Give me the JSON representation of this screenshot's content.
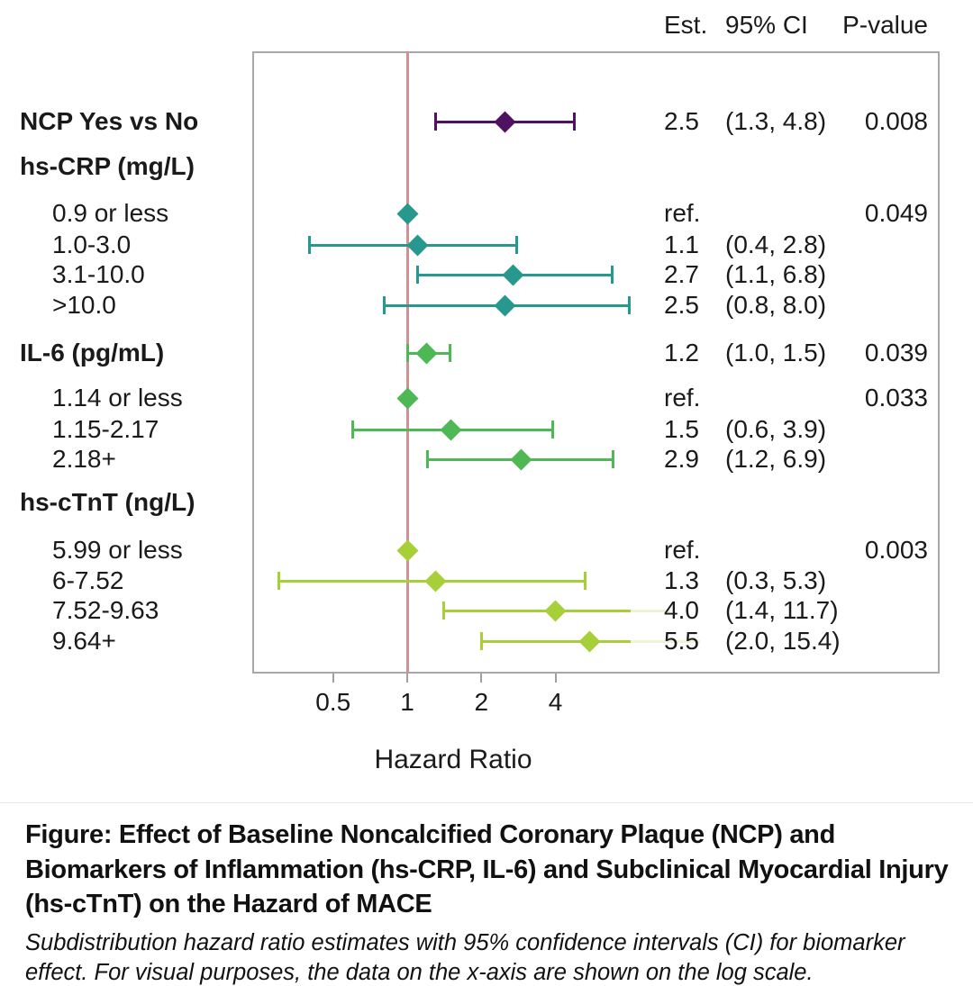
{
  "stats_header": {
    "est": "Est.",
    "ci": "95% CI",
    "pvalue": "P-value"
  },
  "axis": {
    "title": "Hazard Ratio",
    "tick_values": [
      0.5,
      1,
      2,
      4
    ],
    "tick_labels": [
      "0.5",
      "1",
      "2",
      "4"
    ],
    "scale": "log",
    "reference_value": 1
  },
  "colors": {
    "ncp": "#4e1260",
    "hscrp": "#27988d",
    "il6": "#4eb854",
    "hsctnt": "#a6cf39",
    "refline": "#d49090",
    "panel_border": "#a8a8a8",
    "tick": "#a0a0a0"
  },
  "chart_data": {
    "type": "scatter",
    "subtype": "forest-plot",
    "xlabel": "Hazard Ratio",
    "x_ticks": [
      0.5,
      1,
      2,
      4
    ],
    "x_scale": "log2",
    "legend_position": "none",
    "grid": false,
    "rows": [
      {
        "label": "NCP Yes vs No",
        "bold": true,
        "indent": false,
        "hr": 2.5,
        "lo": 1.3,
        "hi": 4.8,
        "est": "2.5",
        "ci": "(1.3, 4.8)",
        "p": "0.008",
        "color": "ncp"
      },
      {
        "label": "hs-CRP (mg/L)",
        "bold": true,
        "indent": false,
        "header_only": true
      },
      {
        "label": "0.9 or less",
        "bold": false,
        "indent": true,
        "hr": 1.0,
        "est": "ref.",
        "p": "0.049",
        "color": "hscrp",
        "ref": true
      },
      {
        "label": "1.0-3.0",
        "bold": false,
        "indent": true,
        "hr": 1.1,
        "lo": 0.4,
        "hi": 2.8,
        "est": "1.1",
        "ci": "(0.4, 2.8)",
        "color": "hscrp"
      },
      {
        "label": "3.1-10.0",
        "bold": false,
        "indent": true,
        "hr": 2.7,
        "lo": 1.1,
        "hi": 6.8,
        "est": "2.7",
        "ci": "(1.1, 6.8)",
        "color": "hscrp"
      },
      {
        "label": ">10.0",
        "bold": false,
        "indent": true,
        "hr": 2.5,
        "lo": 0.8,
        "hi": 8.0,
        "est": "2.5",
        "ci": "(0.8, 8.0)",
        "color": "hscrp"
      },
      {
        "label": "IL-6 (pg/mL)",
        "bold": true,
        "indent": false,
        "hr": 1.2,
        "lo": 1.0,
        "hi": 1.5,
        "est": "1.2",
        "ci": "(1.0, 1.5)",
        "p": "0.039",
        "color": "il6"
      },
      {
        "label": "1.14 or less",
        "bold": false,
        "indent": true,
        "hr": 1.0,
        "est": "ref.",
        "p": "0.033",
        "color": "il6",
        "ref": true
      },
      {
        "label": "1.15-2.17",
        "bold": false,
        "indent": true,
        "hr": 1.5,
        "lo": 0.6,
        "hi": 3.9,
        "est": "1.5",
        "ci": "(0.6, 3.9)",
        "color": "il6"
      },
      {
        "label": "2.18+",
        "bold": false,
        "indent": true,
        "hr": 2.9,
        "lo": 1.2,
        "hi": 6.9,
        "est": "2.9",
        "ci": "(1.2, 6.9)",
        "color": "il6"
      },
      {
        "label": "hs-cTnT (ng/L)",
        "bold": true,
        "indent": false,
        "header_only": true
      },
      {
        "label": "5.99 or less",
        "bold": false,
        "indent": true,
        "hr": 1.0,
        "est": "ref.",
        "p": "0.003",
        "color": "hsctnt",
        "ref": true
      },
      {
        "label": "6-7.52",
        "bold": false,
        "indent": true,
        "hr": 1.3,
        "lo": 0.3,
        "hi": 5.3,
        "est": "1.3",
        "ci": "(0.3, 5.3)",
        "color": "hsctnt"
      },
      {
        "label": "7.52-9.63",
        "bold": false,
        "indent": true,
        "hr": 4.0,
        "lo": 1.4,
        "hi": 11.7,
        "est": "4.0",
        "ci": "(1.4, 11.7)",
        "color": "hsctnt",
        "clip_right": true
      },
      {
        "label": "9.64+",
        "bold": false,
        "indent": true,
        "hr": 5.5,
        "lo": 2.0,
        "hi": 15.4,
        "est": "5.5",
        "ci": "(2.0, 15.4)",
        "color": "hsctnt",
        "clip_right": true
      }
    ]
  },
  "caption": {
    "title": "Figure: Effect of Baseline Noncalcified Coronary Plaque (NCP) and Biomarkers of Inflammation (hs-CRP, IL-6) and Subclinical Myocardial Injury (hs-cTnT) on the Hazard of MACE",
    "subtitle": "Subdistribution hazard ratio estimates with 95% confidence intervals (CI) for biomarker effect. For visual purposes, the data on the x-axis are shown on the log scale."
  }
}
